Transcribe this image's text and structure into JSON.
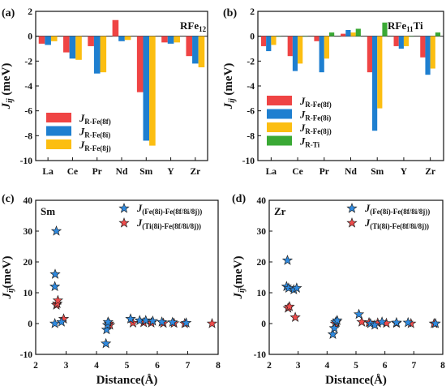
{
  "colors": {
    "red": "#ef4444",
    "blue": "#1e7fd0",
    "yellow": "#fcbe11",
    "green": "#3aa935",
    "star_blue": "#2f8ae0",
    "star_red": "#ee4b4b"
  },
  "chart_data": [
    {
      "panel": "(a)",
      "type": "bar",
      "title": "RFe",
      "title_sub": "12",
      "ylabel": "J",
      "ylabel_sub": "ij",
      "ylabel_unit": " (meV)",
      "ylim": [
        -10,
        2
      ],
      "yticks": [
        -10,
        -8,
        -6,
        -4,
        -2,
        0,
        2
      ],
      "categories": [
        "La",
        "Ce",
        "Pr",
        "Nd",
        "Sm",
        "Y",
        "Zr"
      ],
      "legend_position": "bottom-left",
      "series": [
        {
          "name": "J",
          "name_sub": "R-Fe(8f)",
          "color": "#ef4444",
          "values": [
            -0.6,
            -1.3,
            -0.8,
            1.3,
            -4.5,
            -0.5,
            -1.6
          ]
        },
        {
          "name": "J",
          "name_sub": "R-Fe(8i)",
          "color": "#1e7fd0",
          "values": [
            -0.7,
            -1.8,
            -3.0,
            -0.4,
            -8.4,
            -0.6,
            -2.2
          ]
        },
        {
          "name": "J",
          "name_sub": "R-Fe(8j)",
          "color": "#fcbe11",
          "values": [
            -0.4,
            -1.9,
            -2.9,
            -0.3,
            -8.8,
            -0.5,
            -2.5
          ]
        }
      ]
    },
    {
      "panel": "(b)",
      "type": "bar",
      "title": "RFe",
      "title_sub": "11",
      "title_suffix": "Ti",
      "ylabel": "J",
      "ylabel_sub": "ij",
      "ylabel_unit": " (meV)",
      "ylim": [
        -10,
        2
      ],
      "yticks": [
        -10,
        -8,
        -6,
        -4,
        -2,
        0,
        2
      ],
      "categories": [
        "La",
        "Ce",
        "Pr",
        "Nd",
        "Sm",
        "Y",
        "Zr"
      ],
      "legend_position": "bottom-left",
      "series": [
        {
          "name": "J",
          "name_sub": "R-Fe(8f)",
          "color": "#ef4444",
          "values": [
            -0.8,
            -1.6,
            -0.4,
            0.2,
            -2.9,
            -0.8,
            -1.7
          ]
        },
        {
          "name": "J",
          "name_sub": "R-Fe(8i)",
          "color": "#1e7fd0",
          "values": [
            -1.2,
            -2.8,
            -2.9,
            0.5,
            -7.6,
            -1.0,
            -3.1
          ]
        },
        {
          "name": "J",
          "name_sub": "R-Fe(8j)",
          "color": "#fcbe11",
          "values": [
            -0.7,
            -2.2,
            -1.8,
            0.3,
            -5.8,
            -0.8,
            -2.6
          ]
        },
        {
          "name": "J",
          "name_sub": "R-Ti",
          "color": "#3aa935",
          "values": [
            0.0,
            0.0,
            0.3,
            0.6,
            1.1,
            0.0,
            0.3
          ]
        }
      ]
    },
    {
      "panel": "(c)",
      "type": "scatter",
      "title": "Sm",
      "xlabel": "Distance(Å)",
      "ylabel": "J",
      "ylabel_sub": "ij",
      "ylabel_unit": "(meV)",
      "xlim": [
        2,
        8
      ],
      "ylim": [
        -10,
        40
      ],
      "xticks": [
        2,
        3,
        4,
        5,
        6,
        7,
        8
      ],
      "yticks": [
        -10,
        0,
        10,
        20,
        30,
        40
      ],
      "legend_position": "top-right",
      "series": [
        {
          "name": "J",
          "name_sub": "(Fe(8i)-Fe(8f/8i/8j))",
          "color": "#2f8ae0",
          "x": [
            2.63,
            2.63,
            2.64,
            2.68,
            2.85,
            4.31,
            4.33,
            4.36,
            4.38,
            5.12,
            5.42,
            5.62,
            5.85,
            6.15,
            6.5,
            6.95
          ],
          "y": [
            0.0,
            12.0,
            16.0,
            30.0,
            0.5,
            -6.5,
            -2.0,
            -0.5,
            0.5,
            1.5,
            1.0,
            1.0,
            0.8,
            0.5,
            0.4,
            0.2
          ]
        },
        {
          "name": "J",
          "name_sub": "(Ti(8i)-Fe(8f/8i/8j))",
          "color": "#ee4b4b",
          "x": [
            2.68,
            2.71,
            2.73,
            2.92,
            4.41,
            4.44,
            5.2,
            5.55,
            5.8,
            6.2,
            6.55,
            6.9,
            7.8
          ],
          "y": [
            6.0,
            6.5,
            7.5,
            1.5,
            0.0,
            -0.5,
            0.2,
            0.3,
            0.2,
            0.1,
            0.1,
            0.0,
            0.0
          ]
        }
      ]
    },
    {
      "panel": "(d)",
      "type": "scatter",
      "title": "Zr",
      "xlabel": "Distance(Å)",
      "ylabel": "J",
      "ylabel_sub": "ij",
      "ylabel_unit": "(meV)",
      "xlim": [
        2,
        8
      ],
      "ylim": [
        -10,
        40
      ],
      "xticks": [
        2,
        3,
        4,
        5,
        6,
        7,
        8
      ],
      "yticks": [
        -10,
        0,
        10,
        20,
        30,
        40
      ],
      "legend_position": "top-right",
      "series": [
        {
          "name": "J",
          "name_sub": "(Fe(8i)-Fe(8f/8i/8j))",
          "color": "#2f8ae0",
          "x": [
            2.6,
            2.63,
            2.67,
            2.85,
            2.95,
            4.2,
            4.25,
            4.3,
            4.35,
            5.1,
            5.5,
            5.65,
            5.9,
            6.4,
            6.8,
            7.75
          ],
          "y": [
            12.0,
            20.5,
            11.5,
            11.0,
            11.5,
            -3.5,
            -1.5,
            0.5,
            1.0,
            3.0,
            0.0,
            -0.5,
            0.5,
            0.3,
            0.3,
            0.0
          ]
        },
        {
          "name": "J",
          "name_sub": "(Ti(8i)-Fe(8f/8i/8j))",
          "color": "#ee4b4b",
          "x": [
            2.65,
            2.7,
            2.9,
            4.28,
            4.32,
            5.2,
            5.45,
            5.75,
            6.05,
            6.4,
            6.9,
            7.7
          ],
          "y": [
            5.0,
            5.5,
            2.0,
            0.0,
            0.5,
            0.5,
            0.3,
            0.2,
            0.1,
            0.1,
            0.0,
            0.0
          ]
        }
      ]
    }
  ]
}
